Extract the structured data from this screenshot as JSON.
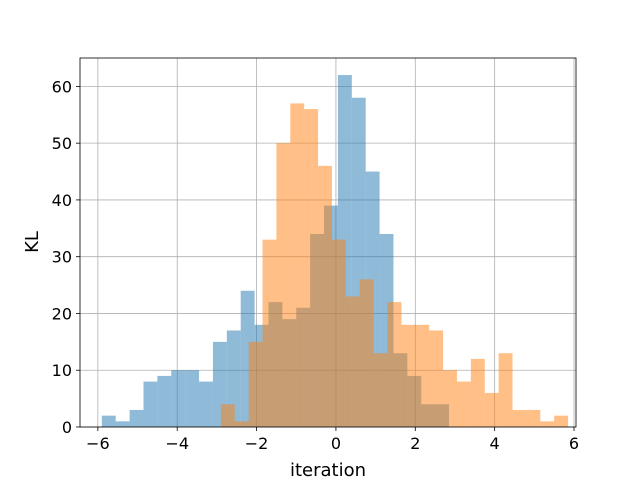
{
  "chart_data": {
    "type": "bar",
    "subtype": "overlaid-histogram",
    "xlabel": "iteration",
    "ylabel": "KL",
    "xlim": [
      -6.45,
      6.05
    ],
    "ylim": [
      0,
      65
    ],
    "xticks": [
      -6,
      -4,
      -2,
      0,
      2,
      4,
      6
    ],
    "xtick_labels": [
      "−6",
      "−4",
      "−2",
      "0",
      "2",
      "4",
      "6"
    ],
    "yticks": [
      0,
      10,
      20,
      30,
      40,
      50,
      60
    ],
    "ytick_labels": [
      "0",
      "10",
      "20",
      "30",
      "40",
      "50",
      "60"
    ],
    "grid": true,
    "legend": "none",
    "series": [
      {
        "color": "#1f77b4",
        "alpha": 0.5,
        "bins": [
          {
            "x0": -5.9,
            "x1": -5.55,
            "count": 2
          },
          {
            "x0": -5.55,
            "x1": -5.2,
            "count": 1
          },
          {
            "x0": -5.2,
            "x1": -4.85,
            "count": 3
          },
          {
            "x0": -4.85,
            "x1": -4.5,
            "count": 8
          },
          {
            "x0": -4.5,
            "x1": -4.15,
            "count": 9
          },
          {
            "x0": -4.15,
            "x1": -3.8,
            "count": 10
          },
          {
            "x0": -3.8,
            "x1": -3.45,
            "count": 10
          },
          {
            "x0": -3.45,
            "x1": -3.1,
            "count": 8
          },
          {
            "x0": -3.1,
            "x1": -2.75,
            "count": 15
          },
          {
            "x0": -2.75,
            "x1": -2.4,
            "count": 17
          },
          {
            "x0": -2.4,
            "x1": -2.05,
            "count": 24
          },
          {
            "x0": -2.05,
            "x1": -1.7,
            "count": 18
          },
          {
            "x0": -1.7,
            "x1": -1.35,
            "count": 22
          },
          {
            "x0": -1.35,
            "x1": -1.0,
            "count": 19
          },
          {
            "x0": -1.0,
            "x1": -0.65,
            "count": 21
          },
          {
            "x0": -0.65,
            "x1": -0.3,
            "count": 34
          },
          {
            "x0": -0.3,
            "x1": 0.05,
            "count": 39
          },
          {
            "x0": 0.05,
            "x1": 0.4,
            "count": 62
          },
          {
            "x0": 0.4,
            "x1": 0.75,
            "count": 58
          },
          {
            "x0": 0.75,
            "x1": 1.1,
            "count": 45
          },
          {
            "x0": 1.1,
            "x1": 1.45,
            "count": 34
          },
          {
            "x0": 1.45,
            "x1": 1.8,
            "count": 13
          },
          {
            "x0": 1.8,
            "x1": 2.15,
            "count": 9
          },
          {
            "x0": 2.15,
            "x1": 2.5,
            "count": 4
          },
          {
            "x0": 2.5,
            "x1": 2.85,
            "count": 4
          }
        ]
      },
      {
        "color": "#ff7f0e",
        "alpha": 0.5,
        "bins": [
          {
            "x0": -2.9,
            "x1": -2.55,
            "count": 4
          },
          {
            "x0": -2.55,
            "x1": -2.2,
            "count": 1
          },
          {
            "x0": -2.2,
            "x1": -1.85,
            "count": 15
          },
          {
            "x0": -1.85,
            "x1": -1.5,
            "count": 33
          },
          {
            "x0": -1.5,
            "x1": -1.15,
            "count": 50
          },
          {
            "x0": -1.15,
            "x1": -0.8,
            "count": 57
          },
          {
            "x0": -0.8,
            "x1": -0.45,
            "count": 56
          },
          {
            "x0": -0.45,
            "x1": -0.1,
            "count": 46
          },
          {
            "x0": -0.1,
            "x1": 0.25,
            "count": 33
          },
          {
            "x0": 0.25,
            "x1": 0.6,
            "count": 23
          },
          {
            "x0": 0.6,
            "x1": 0.95,
            "count": 26
          },
          {
            "x0": 0.95,
            "x1": 1.3,
            "count": 13
          },
          {
            "x0": 1.3,
            "x1": 1.65,
            "count": 22
          },
          {
            "x0": 1.65,
            "x1": 2.0,
            "count": 18
          },
          {
            "x0": 2.0,
            "x1": 2.35,
            "count": 18
          },
          {
            "x0": 2.35,
            "x1": 2.7,
            "count": 17
          },
          {
            "x0": 2.7,
            "x1": 3.05,
            "count": 10
          },
          {
            "x0": 3.05,
            "x1": 3.4,
            "count": 8
          },
          {
            "x0": 3.4,
            "x1": 3.75,
            "count": 12
          },
          {
            "x0": 3.75,
            "x1": 4.1,
            "count": 6
          },
          {
            "x0": 4.1,
            "x1": 4.45,
            "count": 13
          },
          {
            "x0": 4.45,
            "x1": 4.8,
            "count": 3
          },
          {
            "x0": 4.8,
            "x1": 5.15,
            "count": 3
          },
          {
            "x0": 5.15,
            "x1": 5.5,
            "count": 1
          },
          {
            "x0": 5.5,
            "x1": 5.85,
            "count": 2
          }
        ]
      }
    ]
  }
}
